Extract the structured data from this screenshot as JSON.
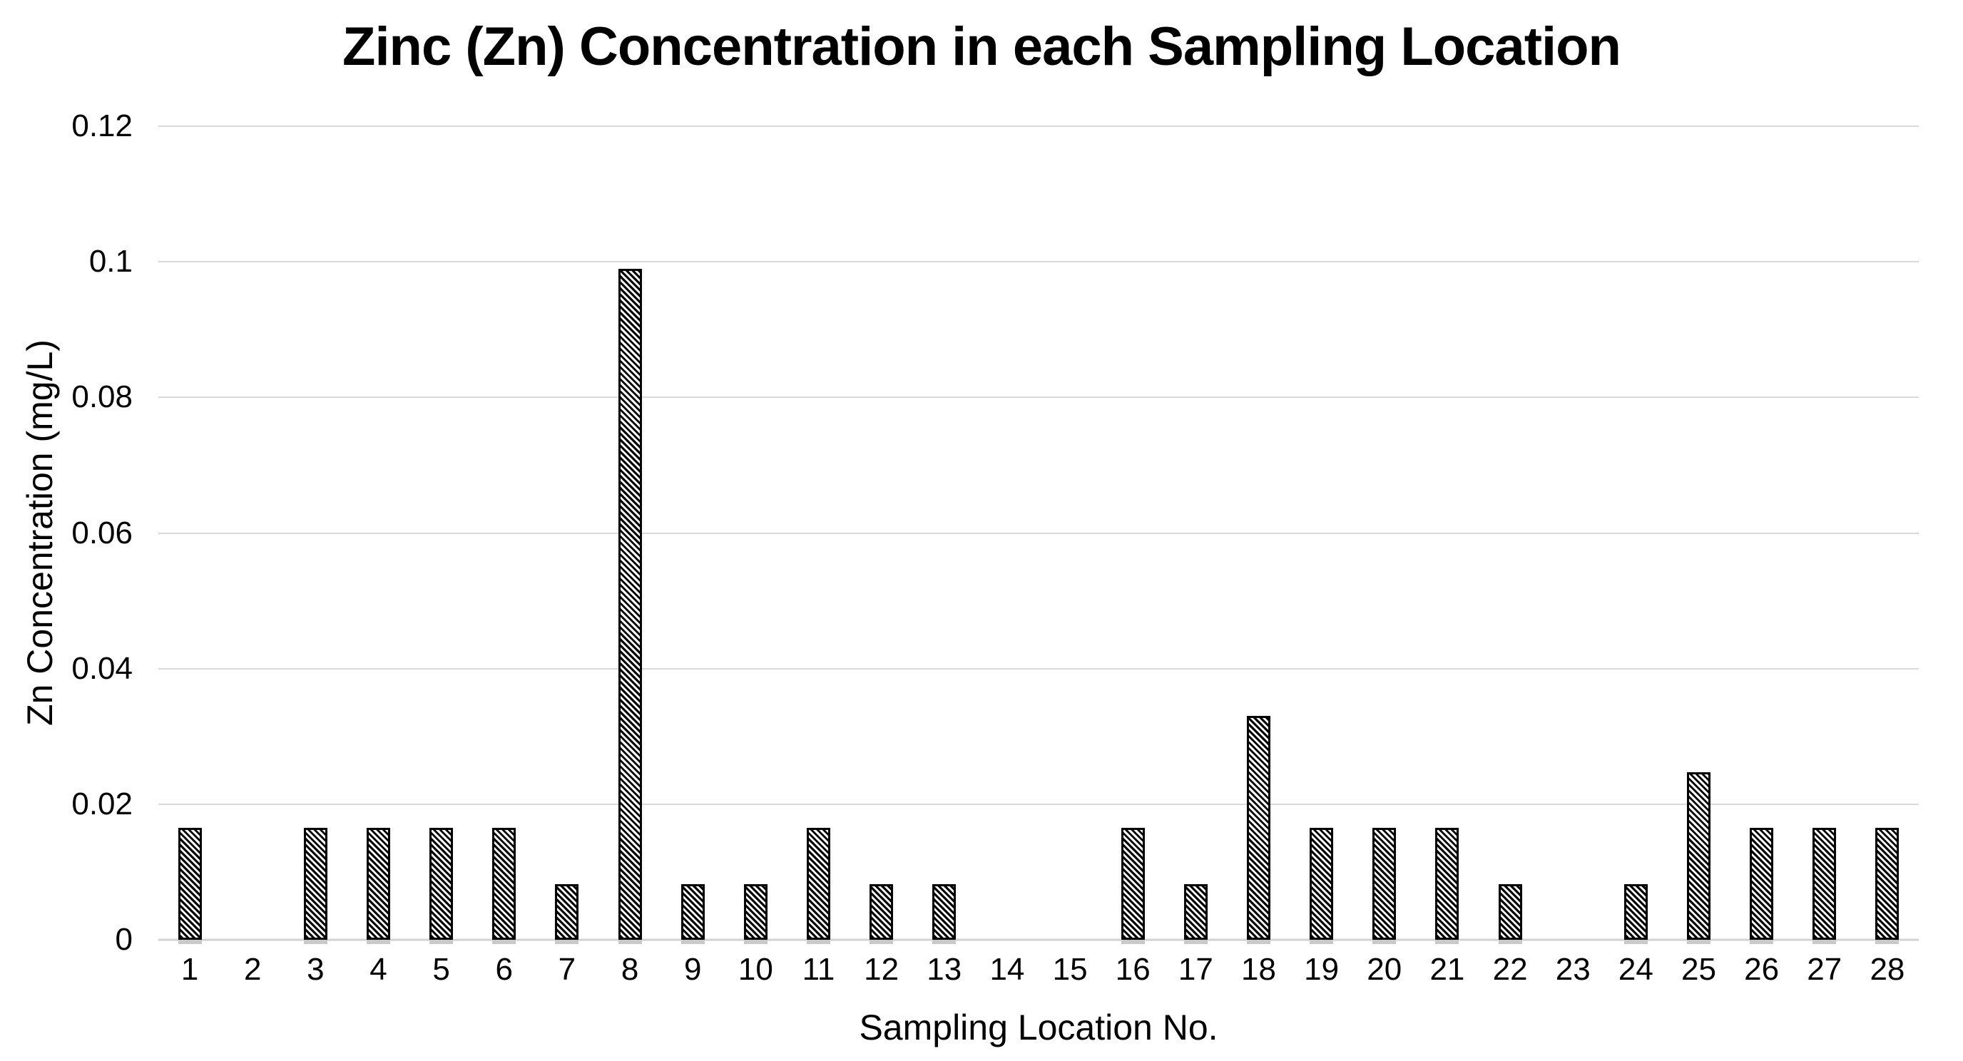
{
  "figure": {
    "background_color": "#ffffff",
    "text_color": "#000000",
    "gridline_color": "#dadada",
    "bar_border_color": "#000000",
    "bar_fill": "hatch-diagonal-down"
  },
  "chart_data": {
    "type": "bar",
    "title": "Zinc (Zn) Concentration in each Sampling Location",
    "xlabel": "Sampling Location No.",
    "ylabel": "Zn Concentration (mg/L)",
    "categories": [
      "1",
      "2",
      "3",
      "4",
      "5",
      "6",
      "7",
      "8",
      "9",
      "10",
      "11",
      "12",
      "13",
      "14",
      "15",
      "16",
      "17",
      "18",
      "19",
      "20",
      "21",
      "22",
      "23",
      "24",
      "25",
      "26",
      "27",
      "28"
    ],
    "values": [
      0.0165,
      0,
      0.0165,
      0.0165,
      0.0165,
      0.0165,
      0.00825,
      0.099,
      0.00825,
      0.00825,
      0.0165,
      0.00825,
      0.00825,
      0,
      0,
      0.0165,
      0.00825,
      0.033,
      0.0165,
      0.0165,
      0.0165,
      0.00825,
      0,
      0.00825,
      0.02475,
      0.0165,
      0.0165,
      0.0165
    ],
    "ylim": [
      0,
      0.12
    ],
    "yticks": [
      0,
      0.02,
      0.04,
      0.06,
      0.08,
      0.1,
      0.12
    ],
    "ytick_labels": [
      "0",
      "0.02",
      "0.04",
      "0.06",
      "0.08",
      "0.1",
      "0.12"
    ],
    "grid": true,
    "legend": null
  }
}
